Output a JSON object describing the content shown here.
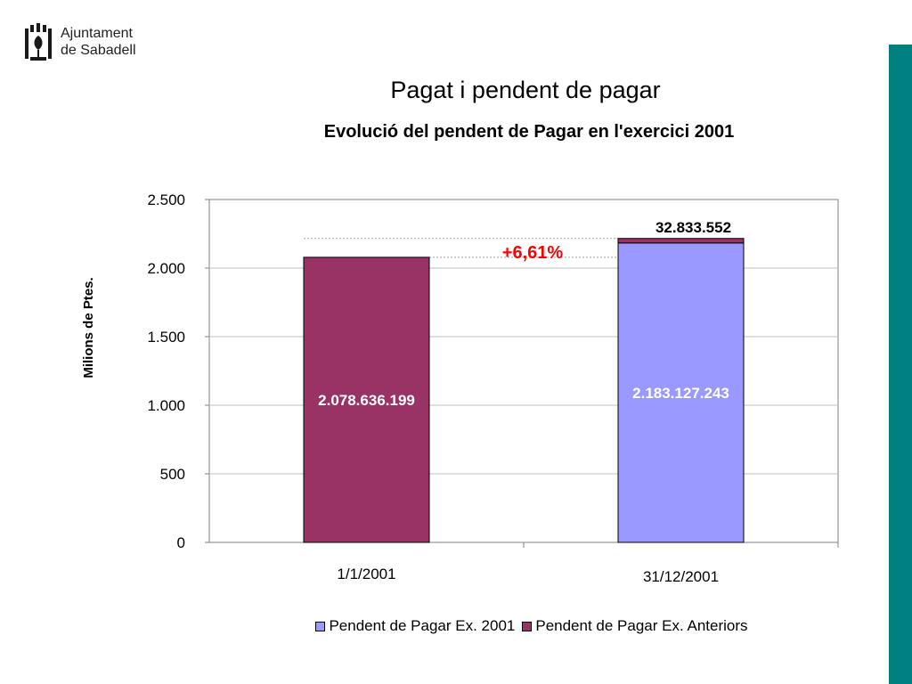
{
  "logo": {
    "line1": "Ajuntament",
    "line2": "de Sabadell",
    "color": "#1a1a1a"
  },
  "accent_bar_color": "#008080",
  "chart_data": {
    "type": "bar",
    "stacked": true,
    "title": "Pagat i pendent de pagar",
    "subtitle": "Evolució del pendent de Pagar en l'exercici 2001",
    "ylabel": "Milions de Ptes.",
    "xlabel": "",
    "ylim": [
      0,
      2500
    ],
    "yticks": [
      0,
      500,
      1000,
      1500,
      2000,
      2500
    ],
    "ytick_labels": [
      "0",
      "500",
      "1.000",
      "1.500",
      "2.000",
      "2.500"
    ],
    "grid": true,
    "categories": [
      "1/1/2001",
      "31/12/2001"
    ],
    "series": [
      {
        "name": "Pendent de Pagar Ex. 2001",
        "color": "#9999ff",
        "values": [
          0,
          2183.127243
        ],
        "labels": [
          "",
          "2.183.127.243"
        ]
      },
      {
        "name": "Pendent de Pagar Ex. Anteriors",
        "color": "#993366",
        "values": [
          2078.636199,
          32.833552
        ],
        "labels": [
          "2.078.636.199",
          "32.833.552"
        ]
      }
    ],
    "annotation": {
      "text": "+6,61%",
      "color": "#ff0000"
    },
    "legend_position": "bottom"
  }
}
